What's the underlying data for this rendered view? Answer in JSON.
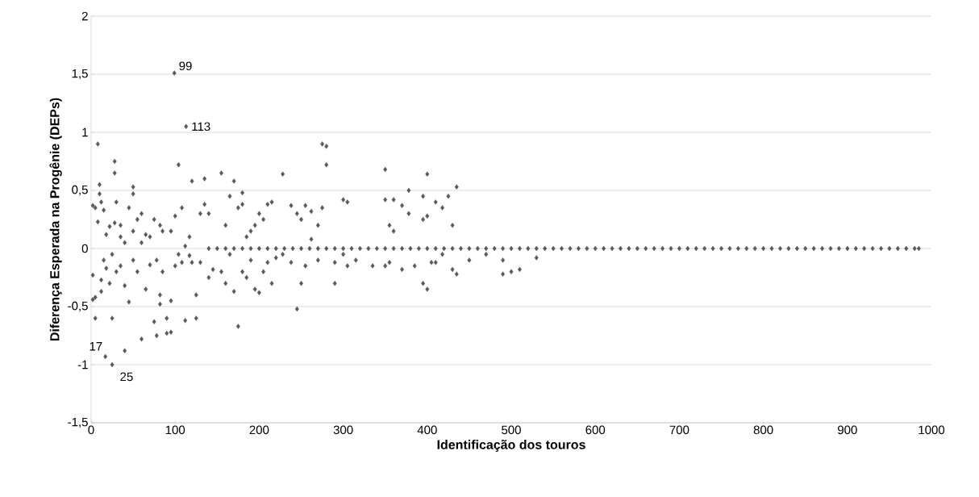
{
  "chart_data": {
    "type": "scatter",
    "xlabel": "Identificação dos touros",
    "ylabel": "Diferença Esperada na Progênie (DEPs)",
    "x": [
      2,
      2,
      2,
      5,
      5,
      5,
      8,
      8,
      10,
      10,
      12,
      12,
      12,
      15,
      15,
      17,
      18,
      18,
      22,
      22,
      25,
      25,
      25,
      28,
      28,
      28,
      30,
      30,
      35,
      35,
      35,
      40,
      40,
      40,
      45,
      45,
      50,
      50,
      50,
      50,
      55,
      55,
      60,
      60,
      60,
      65,
      65,
      70,
      70,
      75,
      75,
      78,
      78,
      82,
      82,
      82,
      85,
      85,
      90,
      90,
      95,
      95,
      95,
      99,
      100,
      100,
      104,
      104,
      108,
      108,
      112,
      112,
      113,
      117,
      117,
      120,
      120,
      125,
      125,
      130,
      130,
      135,
      135,
      140,
      140,
      145,
      155,
      155,
      160,
      160,
      165,
      165,
      170,
      170,
      175,
      175,
      180,
      180,
      180,
      185,
      185,
      190,
      190,
      195,
      195,
      200,
      200,
      205,
      205,
      210,
      210,
      215,
      215,
      220,
      228,
      228,
      238,
      238,
      245,
      245,
      250,
      250,
      255,
      255,
      262,
      262,
      270,
      270,
      275,
      275,
      280,
      280,
      290,
      290,
      300,
      300,
      305,
      305,
      315,
      335,
      350,
      350,
      350,
      355,
      355,
      360,
      360,
      370,
      370,
      378,
      378,
      385,
      395,
      395,
      395,
      400,
      400,
      400,
      405,
      410,
      410,
      418,
      418,
      425,
      430,
      430,
      435,
      435,
      450,
      470,
      490,
      490,
      500,
      510,
      530,
      140,
      150,
      160,
      170,
      180,
      190,
      200,
      210,
      220,
      230,
      240,
      250,
      260,
      270,
      280,
      290,
      300,
      310,
      320,
      330,
      340,
      350,
      360,
      370,
      380,
      390,
      400,
      410,
      420,
      430,
      440,
      450,
      460,
      470,
      480,
      490,
      500,
      510,
      520,
      530,
      540,
      550,
      560,
      570,
      580,
      590,
      600,
      610,
      620,
      630,
      640,
      650,
      660,
      670,
      680,
      690,
      700,
      710,
      720,
      730,
      740,
      750,
      760,
      770,
      780,
      790,
      800,
      810,
      820,
      830,
      840,
      850,
      860,
      870,
      880,
      890,
      900,
      910,
      920,
      930,
      940,
      950,
      960,
      970,
      980,
      985
    ],
    "values": [
      0.37,
      -0.23,
      -0.44,
      0.35,
      -0.42,
      -0.6,
      0.9,
      0.23,
      0.55,
      0.47,
      0.4,
      -0.27,
      -0.37,
      0.33,
      -0.1,
      -0.93,
      0.12,
      -0.17,
      0.19,
      -0.3,
      -1.0,
      -0.6,
      -0.05,
      0.75,
      0.65,
      0.22,
      0.4,
      -0.2,
      0.2,
      0.1,
      -0.15,
      -0.88,
      0.05,
      -0.32,
      0.35,
      -0.46,
      0.53,
      0.47,
      0.15,
      -0.1,
      -0.2,
      0.25,
      -0.78,
      0.3,
      0.05,
      0.12,
      -0.35,
      0.1,
      -0.14,
      -0.63,
      0.25,
      -0.75,
      -0.1,
      0.2,
      -0.48,
      -0.4,
      0.15,
      -0.2,
      -0.73,
      -0.6,
      -0.72,
      0.15,
      -0.45,
      1.51,
      0.28,
      -0.15,
      0.72,
      -0.05,
      0.35,
      -0.12,
      0.02,
      -0.62,
      1.05,
      -0.06,
      0.1,
      0.58,
      -0.12,
      -0.4,
      -0.6,
      -0.12,
      0.3,
      0.6,
      0.38,
      -0.25,
      0.3,
      -0.18,
      0.65,
      -0.2,
      0.2,
      -0.3,
      0.45,
      -0.05,
      0.58,
      -0.37,
      -0.67,
      0.35,
      0.48,
      0.38,
      -0.2,
      0.1,
      -0.25,
      0.15,
      -0.1,
      0.2,
      -0.35,
      0.3,
      -0.38,
      0.25,
      -0.2,
      0.38,
      -0.12,
      0.4,
      -0.3,
      -0.08,
      0.64,
      -0.05,
      0.37,
      -0.12,
      -0.52,
      0.3,
      0.25,
      -0.3,
      0.37,
      -0.15,
      0.32,
      0.08,
      0.2,
      -0.1,
      0.9,
      0.35,
      0.88,
      0.72,
      -0.12,
      -0.3,
      0.42,
      -0.05,
      0.4,
      -0.15,
      -0.1,
      -0.15,
      0.68,
      0.42,
      -0.15,
      0.2,
      -0.12,
      0.42,
      0.15,
      0.37,
      -0.18,
      0.5,
      0.3,
      -0.15,
      0.45,
      0.25,
      -0.3,
      0.64,
      0.28,
      -0.35,
      -0.12,
      0.4,
      -0.12,
      0.35,
      -0.05,
      0.45,
      0.2,
      -0.18,
      0.53,
      -0.22,
      -0.1,
      -0.05,
      -0.1,
      -0.22,
      -0.2,
      -0.18,
      -0.08,
      0,
      0,
      0,
      0,
      0,
      0,
      0,
      0,
      0,
      0,
      0,
      0,
      0,
      0,
      0,
      0,
      0,
      0,
      0,
      0,
      0,
      0,
      0,
      0,
      0,
      0,
      0,
      0,
      0,
      0,
      0,
      0,
      0,
      0,
      0,
      0,
      0,
      0,
      0,
      0,
      0,
      0,
      0,
      0,
      0,
      0,
      0,
      0,
      0,
      0,
      0,
      0,
      0,
      0,
      0,
      0,
      0,
      0,
      0,
      0,
      0,
      0,
      0,
      0,
      0,
      0,
      0,
      0,
      0,
      0,
      0,
      0,
      0,
      0,
      0,
      0,
      0,
      0,
      0,
      0,
      0,
      0,
      0,
      0,
      0,
      0
    ],
    "color": "#595959",
    "marker": "diamond",
    "xlim": [
      0,
      1000
    ],
    "ylim": [
      -1.5,
      2
    ],
    "xticks": [
      0,
      100,
      200,
      300,
      400,
      500,
      600,
      700,
      800,
      900,
      1000
    ],
    "yticks": [
      {
        "value": -1.5,
        "label": "-1,5"
      },
      {
        "value": -1,
        "label": "-1"
      },
      {
        "value": -0.5,
        "label": "-0,5"
      },
      {
        "value": 0,
        "label": "0"
      },
      {
        "value": 0.5,
        "label": "0,5"
      },
      {
        "value": 1,
        "label": "1"
      },
      {
        "value": 1.5,
        "label": "1,5"
      },
      {
        "value": 2,
        "label": "2"
      }
    ],
    "grid": "y",
    "annotations": [
      {
        "text": "99",
        "x": 99,
        "y": 1.51
      },
      {
        "text": "113",
        "x": 113,
        "y": 1.05
      },
      {
        "text": "17",
        "x": 17,
        "y": -0.93
      },
      {
        "text": "25",
        "x": 25,
        "y": -1.0
      }
    ]
  }
}
